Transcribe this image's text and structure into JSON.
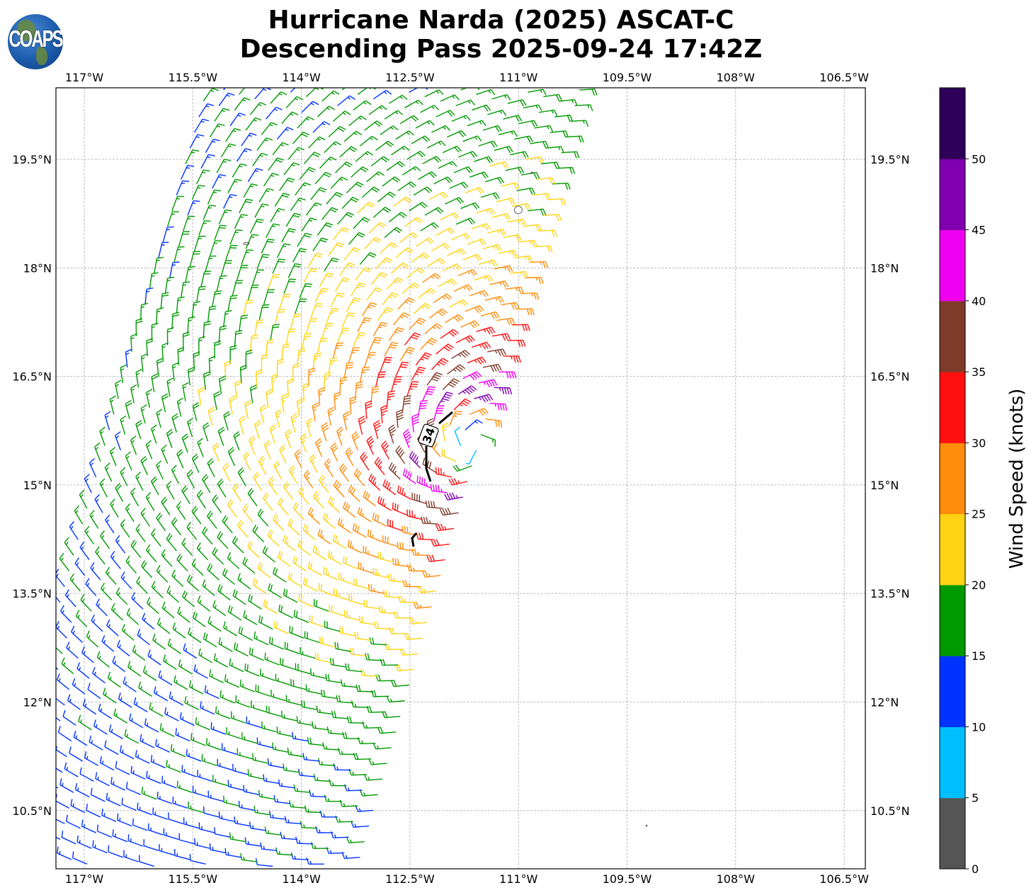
{
  "title": {
    "line1": "Hurricane Narda (2025) ASCAT-C",
    "line2": "Descending Pass 2025-09-24 17:42Z"
  },
  "logo": {
    "text": "COAPS"
  },
  "map": {
    "lon_range": [
      -117.39,
      -106.21
    ],
    "lat_range": [
      9.7,
      20.49
    ],
    "lon_ticks": [
      {
        "value": -117,
        "label": "117°W"
      },
      {
        "value": -115.5,
        "label": "115.5°W"
      },
      {
        "value": -114,
        "label": "114°W"
      },
      {
        "value": -112.5,
        "label": "112.5°W"
      },
      {
        "value": -111,
        "label": "111°W"
      },
      {
        "value": -109.5,
        "label": "109.5°W"
      },
      {
        "value": -108,
        "label": "108°W"
      },
      {
        "value": -106.5,
        "label": "106.5°W"
      }
    ],
    "lat_ticks": [
      {
        "value": 19.5,
        "label": "19.5°N"
      },
      {
        "value": 18,
        "label": "18°N"
      },
      {
        "value": 16.5,
        "label": "16.5°N"
      },
      {
        "value": 15,
        "label": "15°N"
      },
      {
        "value": 13.5,
        "label": "13.5°N"
      },
      {
        "value": 12,
        "label": "12°N"
      },
      {
        "value": 10.5,
        "label": "10.5°N"
      }
    ],
    "swath": [
      [
        -115.47,
        20.49
      ],
      [
        -110.14,
        20.49
      ],
      [
        -113.22,
        9.7
      ],
      [
        -117.39,
        9.7
      ],
      [
        -117.39,
        13.7
      ]
    ],
    "storm_center": {
      "lon": -111.65,
      "lat": 15.55
    },
    "vmax_kt": 46,
    "rmax_deg": 0.7,
    "contour_label": "34"
  },
  "colorbar": {
    "label": "Wind Speed (knots)",
    "bounds": [
      0,
      5,
      10,
      15,
      20,
      25,
      30,
      35,
      40,
      45,
      50,
      55
    ],
    "colors": [
      "#555555",
      "#00bfff",
      "#0033ff",
      "#009900",
      "#ffd414",
      "#ff8c0a",
      "#ff1010",
      "#7f3b2a",
      "#f000f0",
      "#8000b0",
      "#2e0057"
    ],
    "tick_labels": [
      "0",
      "5",
      "10",
      "15",
      "20",
      "25",
      "30",
      "35",
      "40",
      "45",
      "50"
    ]
  }
}
